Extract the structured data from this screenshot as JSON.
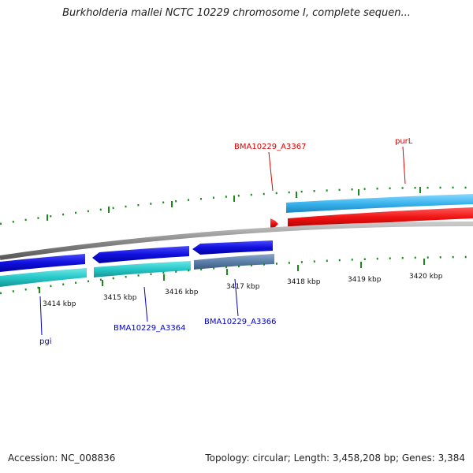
{
  "title": "Burkholderia mallei NCTC 10229 chromosome I, complete sequen...",
  "footer": {
    "accession": "Accession: NC_008836",
    "summary": "Topology: circular; Length: 3,458,208 bp; Genes: 3,384"
  },
  "scale": {
    "labels": [
      "3414 kbp",
      "3415 kbp",
      "3416 kbp",
      "3417 kbp",
      "3418 kbp",
      "3419 kbp",
      "3420 kbp"
    ]
  },
  "genes": {
    "forward": [
      {
        "id": "BMA10229_A3367",
        "color": "#dd0000"
      },
      {
        "id": "purL",
        "color": "#dd0000"
      }
    ],
    "reverse": [
      {
        "id": "pgi",
        "color": "#0000bb"
      },
      {
        "id": "BMA10229_A3364",
        "color": "#0000bb"
      },
      {
        "id": "BMA10229_A3366",
        "color": "#0000bb"
      }
    ]
  },
  "colors": {
    "backbone": "#8a8a8a",
    "tick": "#1a8a1a",
    "blue": "#1010dd",
    "cyan": "#27c8c8",
    "light_blue": "#3ab4ee",
    "steel": "#5a7fa8",
    "red": "#ee1111"
  }
}
